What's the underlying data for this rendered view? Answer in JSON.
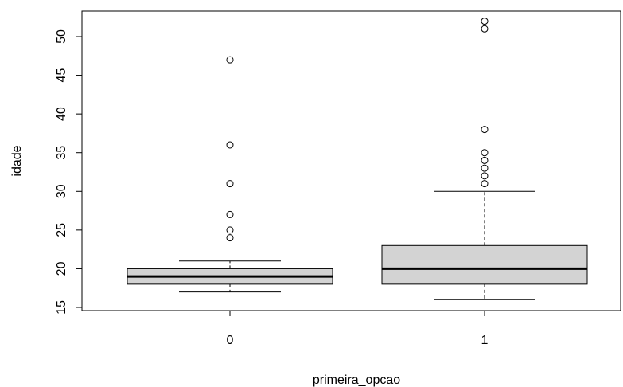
{
  "chart_data": {
    "type": "boxplot",
    "xlabel": "primeira_opcao",
    "ylabel": "idade",
    "categories": [
      "0",
      "1"
    ],
    "ylim": [
      15,
      53
    ],
    "yticks": [
      15,
      20,
      25,
      30,
      35,
      40,
      45,
      50
    ],
    "box_fill": "#d3d3d3",
    "boxes": [
      {
        "category": "0",
        "whisker_low": 17,
        "q1": 18,
        "median": 19,
        "q3": 20,
        "whisker_high": 21,
        "outliers": [
          24,
          25,
          27,
          31,
          36,
          47
        ]
      },
      {
        "category": "1",
        "whisker_low": 16,
        "q1": 18,
        "median": 20,
        "q3": 23,
        "whisker_high": 30,
        "outliers": [
          31,
          32,
          33,
          34,
          35,
          38,
          51,
          52
        ]
      }
    ]
  }
}
